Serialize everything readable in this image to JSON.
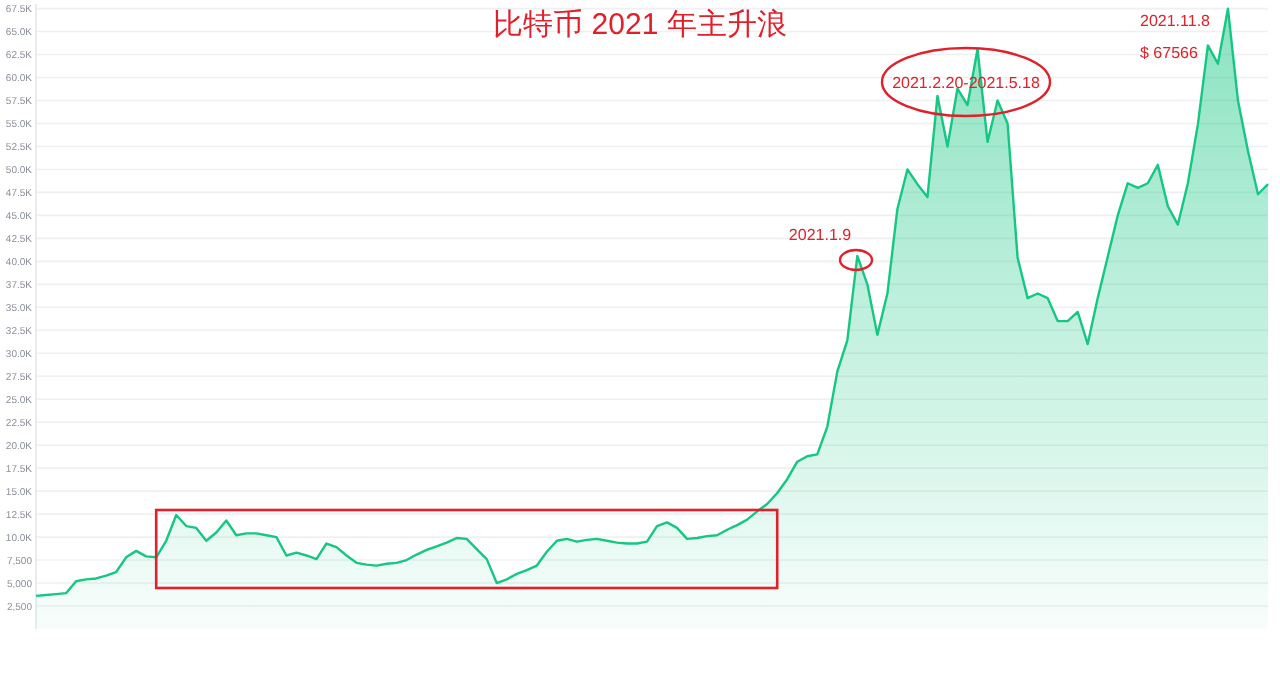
{
  "chart_data": {
    "type": "area",
    "title": "比特币 2021 年主升浪",
    "categories": [
      null,
      null,
      null,
      null,
      null,
      null,
      null,
      null,
      null,
      null,
      null,
      null,
      null,
      null,
      null,
      null,
      null,
      null,
      null,
      null,
      null,
      null,
      null,
      null,
      null,
      null,
      null,
      null,
      null,
      null,
      null,
      null,
      null,
      null,
      null,
      null,
      null,
      null,
      null,
      null,
      null,
      null,
      null,
      null,
      null,
      null,
      null,
      null,
      null,
      null,
      null,
      null,
      null,
      null,
      null,
      null,
      null,
      null,
      null,
      null,
      null,
      null,
      null,
      null,
      null,
      null,
      null,
      null,
      null,
      null,
      null,
      null,
      null,
      null,
      null,
      null,
      null,
      null,
      null,
      null,
      null,
      null,
      null,
      null,
      null,
      null,
      null,
      null,
      null,
      null,
      null,
      null,
      null,
      null,
      null,
      null,
      null,
      null,
      null,
      null,
      null,
      null,
      null,
      null,
      null,
      null,
      null,
      null,
      null,
      null,
      null,
      null,
      null,
      null,
      null,
      null,
      null,
      null,
      null,
      null,
      null,
      null,
      null,
      null
    ],
    "series": [
      {
        "color": "#16c784",
        "values": [
          3600,
          3700,
          3800,
          3900,
          5200,
          5400,
          5500,
          5800,
          6200,
          7800,
          8500,
          7900,
          7800,
          9600,
          12400,
          11200,
          11000,
          9600,
          10500,
          11800,
          10200,
          10400,
          10400,
          10200,
          10000,
          8000,
          8300,
          8000,
          7600,
          9300,
          8900,
          8000,
          7200,
          7000,
          6900,
          7100,
          7200,
          7500,
          8100,
          8600,
          9000,
          9400,
          9900,
          9800,
          8700,
          7600,
          5000,
          5400,
          6000,
          6400,
          6900,
          8400,
          9600,
          9800,
          9500,
          9700,
          9800,
          9600,
          9400,
          9300,
          9300,
          9500,
          11200,
          11600,
          11000,
          9800,
          9900,
          10100,
          10200,
          10800,
          11300,
          11900,
          12800,
          13600,
          14800,
          16300,
          18200,
          18800,
          19000,
          22000,
          28000,
          31400,
          40600,
          37500,
          32000,
          36500,
          45700,
          50000,
          48400,
          47000,
          58000,
          52500,
          58800,
          57000,
          63100,
          53000,
          57500,
          55000,
          40400,
          36000,
          36500,
          36000,
          33500,
          33500,
          34500,
          31000,
          36000,
          40500,
          45000,
          48500,
          48000,
          48500,
          50500,
          46000,
          44000,
          48500,
          54900,
          63500,
          61500,
          67500,
          57500,
          52000,
          47300,
          48400
        ]
      }
    ],
    "ylim": [
      0,
      68000
    ],
    "yticks": [
      {
        "value": 2500,
        "label": "2,500"
      },
      {
        "value": 5000,
        "label": "5,000"
      },
      {
        "value": 7500,
        "label": "7,500"
      },
      {
        "value": 10000,
        "label": "10.0K"
      },
      {
        "value": 12500,
        "label": "12.5K"
      },
      {
        "value": 15000,
        "label": "15.0K"
      },
      {
        "value": 17500,
        "label": "17.5K"
      },
      {
        "value": 20000,
        "label": "20.0K"
      },
      {
        "value": 22500,
        "label": "22.5K"
      },
      {
        "value": 25000,
        "label": "25.0K"
      },
      {
        "value": 27500,
        "label": "27.5K"
      },
      {
        "value": 30000,
        "label": "30.0K"
      },
      {
        "value": 32500,
        "label": "32.5K"
      },
      {
        "value": 35000,
        "label": "35.0K"
      },
      {
        "value": 37500,
        "label": "37.5K"
      },
      {
        "value": 40000,
        "label": "40.0K"
      },
      {
        "value": 42500,
        "label": "42.5K"
      },
      {
        "value": 45000,
        "label": "45.0K"
      },
      {
        "value": 47500,
        "label": "47.5K"
      },
      {
        "value": 50000,
        "label": "50.0K"
      },
      {
        "value": 52500,
        "label": "52.5K"
      },
      {
        "value": 55000,
        "label": "55.0K"
      },
      {
        "value": 57500,
        "label": "57.5K"
      },
      {
        "value": 60000,
        "label": "60.0K"
      },
      {
        "value": 62500,
        "label": "62.5K"
      },
      {
        "value": 65000,
        "label": "65.0K"
      },
      {
        "value": 67500,
        "label": "67.5K"
      }
    ],
    "grid": "y",
    "tick_labels": "y",
    "annotations": [
      "2021.1.9",
      "2021.2.20-2021.5.18",
      "2021.11.8",
      "$ 67566"
    ]
  }
}
